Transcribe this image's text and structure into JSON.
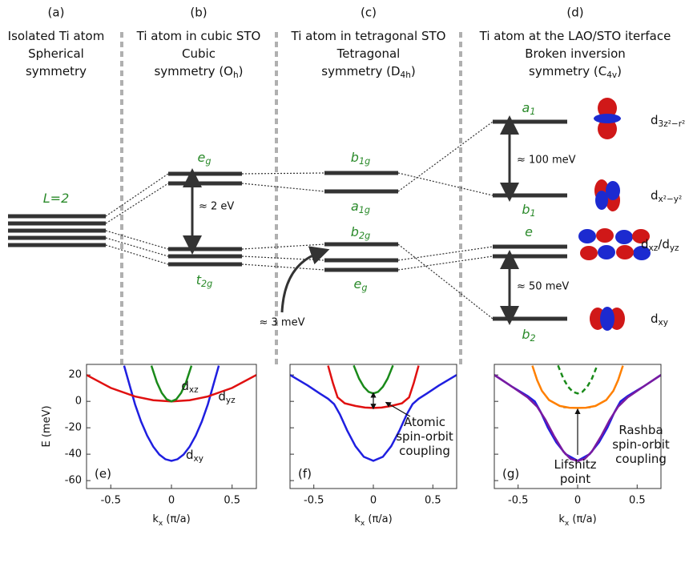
{
  "diagram": {
    "panels": [
      {
        "label": "(a)",
        "title": [
          [
            "Isolated Ti atom"
          ],
          [
            "Spherical"
          ],
          [
            "symmetry"
          ]
        ]
      },
      {
        "label": "(b)",
        "title": [
          [
            "Ti atom in cubic STO"
          ],
          [
            "Cubic"
          ],
          [
            "symmetry (O",
            "h",
            ")"
          ]
        ]
      },
      {
        "label": "(c)",
        "title": [
          [
            "Ti atom in tetragonal STO"
          ],
          [
            "Tetragonal"
          ],
          [
            "symmetry (D",
            "4h",
            ")"
          ]
        ]
      },
      {
        "label": "(d)",
        "title": [
          [
            "Ti atom at the LAO/STO iterface"
          ],
          [
            "Broken inversion"
          ],
          [
            "symmetry (C",
            "4v",
            ")"
          ]
        ]
      }
    ],
    "level_labels": [
      [
        "L=2"
      ],
      [
        "e",
        "g"
      ],
      [
        "t",
        "2g"
      ],
      [
        "b",
        "1g"
      ],
      [
        "a",
        "1g"
      ],
      [
        "b",
        "2g"
      ],
      [
        "e",
        "g"
      ],
      [
        "a",
        "1"
      ],
      [
        "b",
        "1"
      ],
      [
        "e"
      ],
      [
        "b",
        "2"
      ]
    ],
    "annotations": [
      "≈ 2 eV",
      "≈ 3 meV",
      "≈ 100 meV",
      "≈ 50 meV"
    ],
    "orbitals": [
      [
        "d",
        "3z²−r²"
      ],
      [
        "d",
        "x²−y²"
      ],
      [
        "d",
        "xz",
        "/d",
        "yz"
      ],
      [
        "d",
        "xy"
      ]
    ]
  },
  "chart_data": [
    {
      "type": "line",
      "panel": "(e)",
      "xlabel": [
        "k",
        "x",
        " (π/a)"
      ],
      "ylabel": [
        "E (meV)"
      ],
      "xlim": [
        -0.7,
        0.7
      ],
      "ylim": [
        -66,
        28
      ],
      "xticks": [
        -0.5,
        0,
        0.5
      ],
      "yticks": [
        20,
        0,
        -20,
        -40,
        -60
      ],
      "annotations": [
        [
          "d",
          "xz"
        ],
        [
          "d",
          "yz"
        ],
        [
          "d",
          "xy"
        ]
      ],
      "series": [
        {
          "color": "#1f1fe0",
          "x": [
            -0.39,
            -0.3,
            -0.25,
            -0.2,
            -0.15,
            -0.1,
            -0.05,
            0,
            0.05,
            0.1,
            0.15,
            0.2,
            0.25,
            0.3,
            0.39
          ],
          "y": [
            27,
            -2.3,
            -15.3,
            -26,
            -34.3,
            -40.3,
            -43.8,
            -45,
            -43.8,
            -40.3,
            -34.3,
            -26,
            -15.3,
            -2.3,
            27
          ]
        },
        {
          "color": "#e01010",
          "x": [
            -0.7,
            -0.5,
            -0.3,
            -0.15,
            0,
            0.15,
            0.3,
            0.5,
            0.7
          ],
          "y": [
            20,
            10.2,
            3.7,
            0.9,
            0,
            0.9,
            3.7,
            10.2,
            20
          ]
        },
        {
          "color": "#1a8a1a",
          "x": [
            -0.165,
            -0.12,
            -0.08,
            -0.04,
            0,
            0.04,
            0.08,
            0.12,
            0.165
          ],
          "y": [
            27,
            14.4,
            6.4,
            1.6,
            0,
            1.6,
            6.4,
            14.4,
            27
          ]
        }
      ]
    },
    {
      "type": "line",
      "panel": "(f)",
      "xlabel": [
        "k",
        "x",
        " (π/a)"
      ],
      "xlim": [
        -0.7,
        0.7
      ],
      "ylim": [
        -66,
        28
      ],
      "xticks": [
        -0.5,
        0,
        0.5
      ],
      "yticks": [
        20,
        0,
        -20,
        -40,
        -60
      ],
      "annotations": [
        [
          "Atomic"
        ],
        [
          "spin-orbit"
        ],
        [
          "coupling"
        ]
      ],
      "series": [
        {
          "color": "#1f1fe0",
          "x": [
            -0.7,
            -0.55,
            -0.45,
            -0.38,
            -0.33,
            -0.28,
            -0.22,
            -0.15,
            -0.08,
            0,
            0.08,
            0.15,
            0.22,
            0.28,
            0.33,
            0.38,
            0.45,
            0.55,
            0.7
          ],
          "y": [
            20,
            12,
            6,
            2,
            -2,
            -10,
            -22,
            -34,
            -42,
            -45,
            -42,
            -34,
            -22,
            -10,
            -2,
            2,
            6,
            12,
            20
          ]
        },
        {
          "color": "#e01010",
          "x": [
            -0.38,
            -0.34,
            -0.3,
            -0.24,
            -0.15,
            -0.07,
            0,
            0.07,
            0.15,
            0.24,
            0.3,
            0.34,
            0.38
          ],
          "y": [
            27,
            14,
            3,
            -1.5,
            -3.5,
            -4.7,
            -5,
            -4.7,
            -3.5,
            -1.5,
            3,
            14,
            27
          ]
        },
        {
          "color": "#1a8a1a",
          "x": [
            -0.165,
            -0.12,
            -0.08,
            -0.04,
            0,
            0.04,
            0.08,
            0.12,
            0.165
          ],
          "y": [
            27.2,
            17.2,
            11,
            7.2,
            6,
            7.2,
            11,
            17.2,
            27.2
          ]
        }
      ]
    },
    {
      "type": "line",
      "panel": "(g)",
      "xlabel": [
        "k",
        "x",
        " (π/a)"
      ],
      "xlim": [
        -0.7,
        0.7
      ],
      "ylim": [
        -66,
        28
      ],
      "xticks": [
        -0.5,
        0,
        0.5
      ],
      "yticks": [
        20,
        0,
        -20,
        -40,
        -60
      ],
      "annotations": [
        [
          "Lifshitz"
        ],
        [
          "point"
        ],
        [
          "Rashba"
        ],
        [
          "spin-orbit"
        ],
        [
          "coupling"
        ]
      ],
      "series": [
        {
          "color": "#1f1fe0",
          "x": [
            -0.7,
            -0.55,
            -0.42,
            -0.36,
            -0.31,
            -0.25,
            -0.18,
            -0.1,
            0,
            0.1,
            0.18,
            0.25,
            0.31,
            0.36,
            0.42,
            0.55,
            0.7
          ],
          "y": [
            20,
            11,
            4,
            0,
            -8,
            -20,
            -31,
            -40,
            -45,
            -40,
            -31,
            -20,
            -8,
            0,
            4,
            11,
            20
          ]
        },
        {
          "color": "#7a1aa0",
          "x": [
            -0.7,
            -0.55,
            -0.42,
            -0.34,
            -0.27,
            -0.2,
            -0.12,
            -0.06,
            0,
            0.06,
            0.12,
            0.2,
            0.27,
            0.34,
            0.42,
            0.55,
            0.7
          ],
          "y": [
            20,
            11,
            3,
            -4,
            -14,
            -26,
            -38,
            -43.5,
            -45,
            -43.5,
            -38,
            -26,
            -14,
            -4,
            3,
            11,
            20
          ]
        },
        {
          "color": "#ff8000",
          "x": [
            -0.38,
            -0.34,
            -0.3,
            -0.24,
            -0.15,
            -0.07,
            0,
            0.07,
            0.15,
            0.24,
            0.3,
            0.34,
            0.38
          ],
          "y": [
            27,
            16,
            8,
            1,
            -3.5,
            -4.8,
            -5,
            -4.8,
            -3.5,
            1,
            8,
            16,
            27
          ]
        },
        {
          "color": "#1a8a1a",
          "linestyle": "dashed",
          "x": [
            -0.165,
            -0.12,
            -0.08,
            -0.04,
            0,
            0.04,
            0.08,
            0.12,
            0.165
          ],
          "y": [
            27.2,
            17.2,
            11,
            7.2,
            6,
            7.2,
            11,
            17.2,
            27.2
          ]
        }
      ]
    }
  ]
}
